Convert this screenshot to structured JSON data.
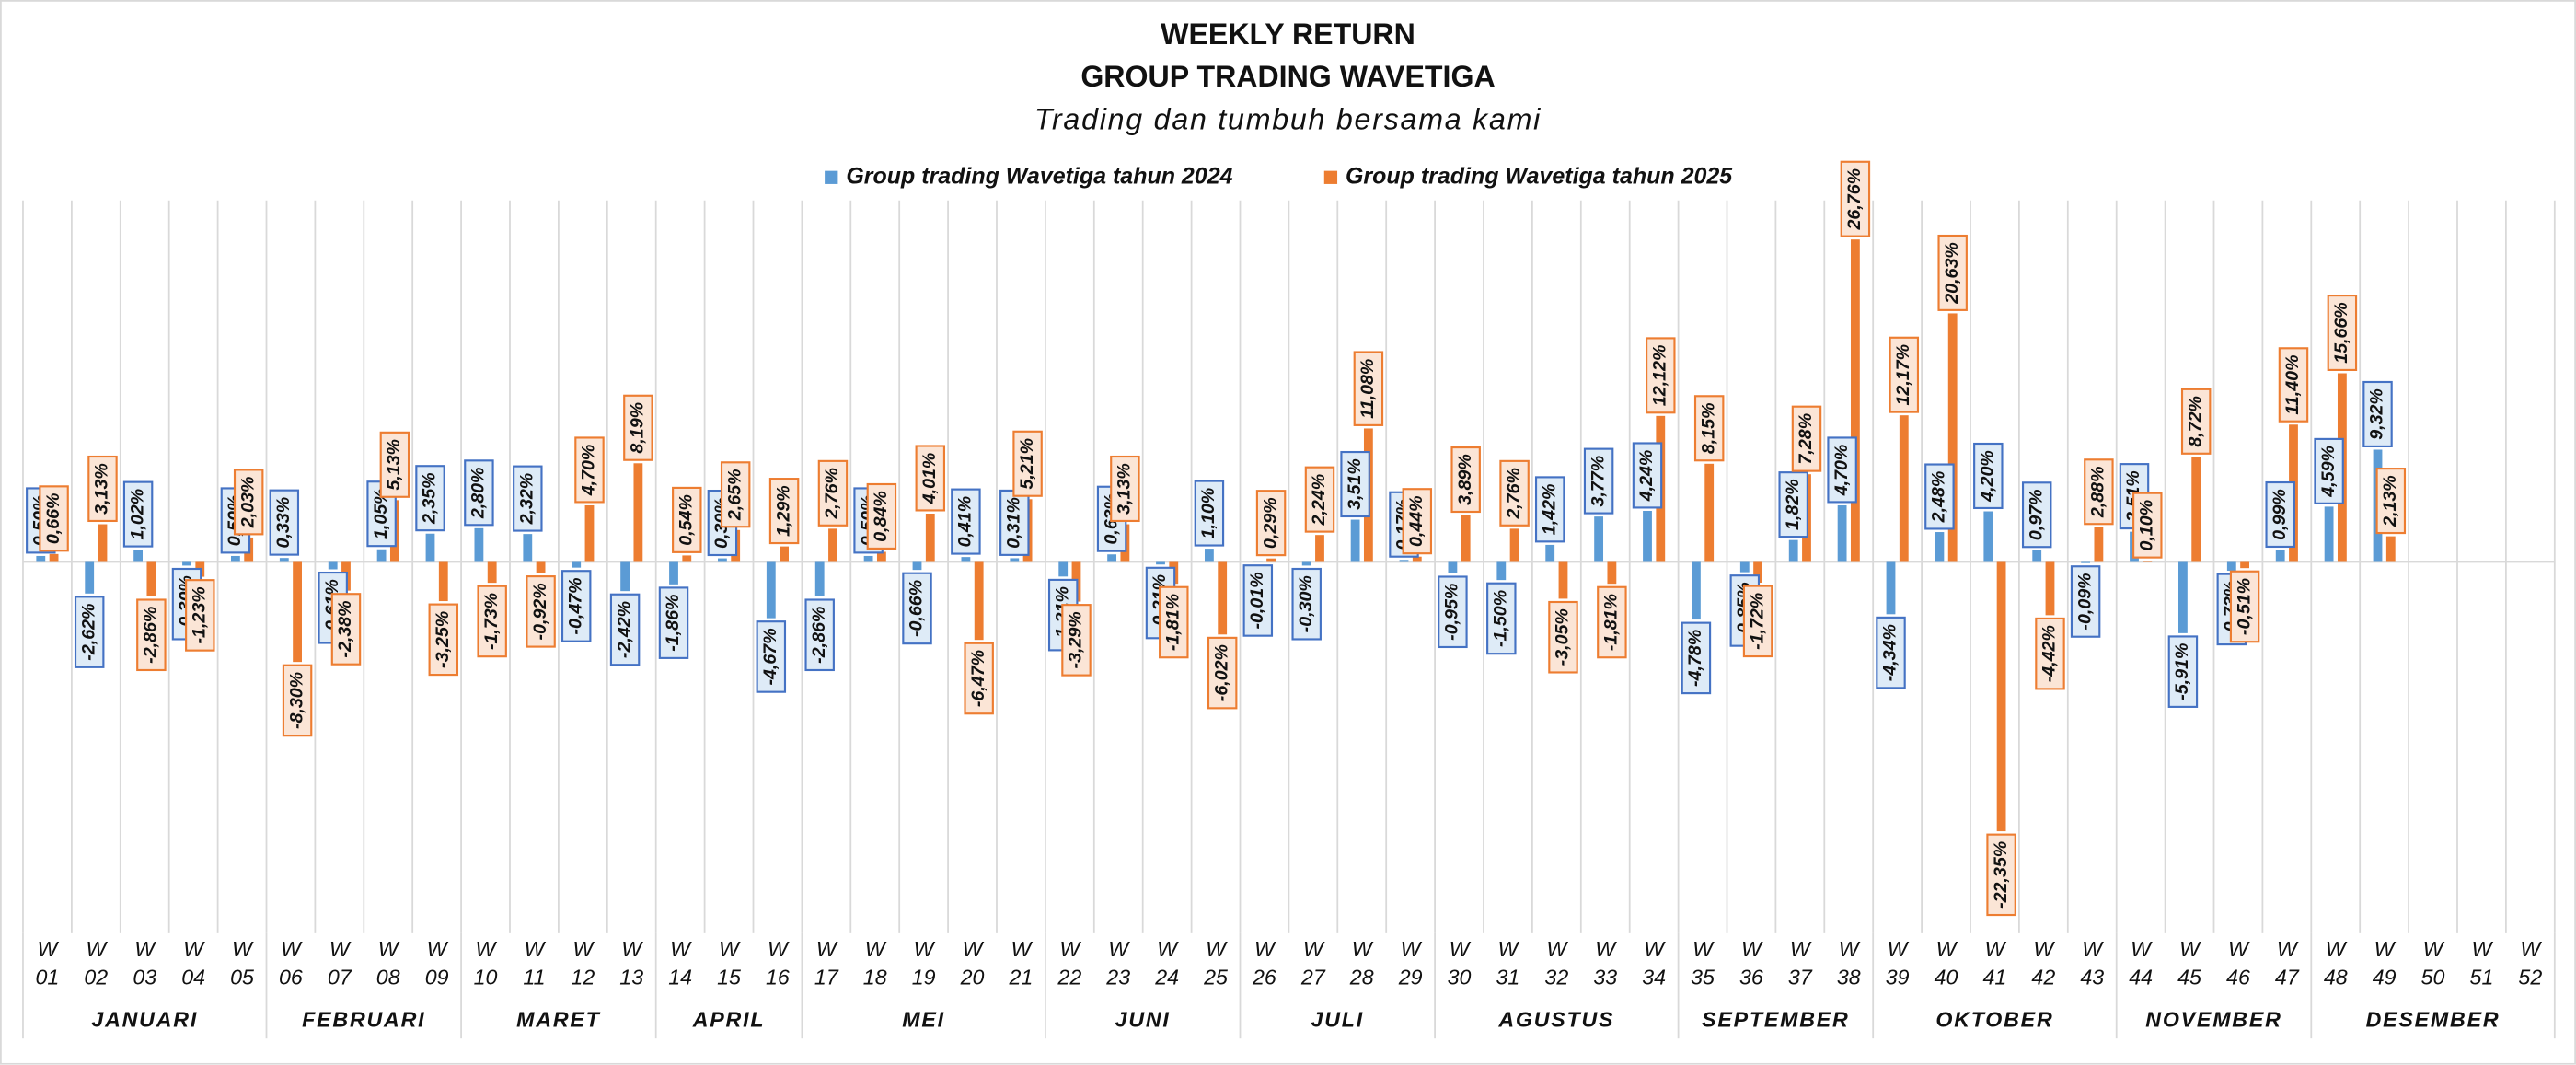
{
  "chart_data": {
    "type": "bar",
    "title": "WEEKLY RETURN",
    "title_line2": "GROUP TRADING WAVETIGA",
    "subtitle": "Trading dan tumbuh bersama kami",
    "category_groups": [
      {
        "name": "JANUARI",
        "categories": [
          "W\n01",
          "W\n02",
          "W\n03",
          "W\n04",
          "W\n05"
        ]
      },
      {
        "name": "FEBRUARI",
        "categories": [
          "W\n06",
          "W\n07",
          "W\n08",
          "W\n09"
        ]
      },
      {
        "name": "MARET",
        "categories": [
          "W\n10",
          "W\n11",
          "W\n12",
          "W\n13"
        ]
      },
      {
        "name": "APRIL",
        "categories": [
          "W\n14",
          "W\n15",
          "W\n16"
        ]
      },
      {
        "name": "MEI",
        "categories": [
          "W\n17",
          "W\n18",
          "W\n19",
          "W\n20",
          "W\n21"
        ]
      },
      {
        "name": "JUNI",
        "categories": [
          "W\n22",
          "W\n23",
          "W\n24",
          "W\n25"
        ]
      },
      {
        "name": "JULI",
        "categories": [
          "W\n26",
          "W\n27",
          "W\n28",
          "W\n29"
        ]
      },
      {
        "name": "AGUSTUS",
        "categories": [
          "W\n30",
          "W\n31",
          "W\n32",
          "W\n33",
          "W\n34"
        ]
      },
      {
        "name": "SEPTEMBER",
        "categories": [
          "W\n35",
          "W\n36",
          "W\n37",
          "W\n38"
        ]
      },
      {
        "name": "OKTOBER",
        "categories": [
          "W\n39",
          "W\n40",
          "W\n41",
          "W\n42",
          "W\n43"
        ]
      },
      {
        "name": "NOVEMBER",
        "categories": [
          "W\n44",
          "W\n45",
          "W\n46",
          "W\n47"
        ]
      },
      {
        "name": "DESEMBER",
        "categories": [
          "W\n48",
          "W\n49",
          "W\n50",
          "W\n51",
          "W\n52"
        ]
      }
    ],
    "series": [
      {
        "name": "Group trading Wavetiga tahun 2024",
        "color": "#5B9BD5",
        "label_border": "#4472C4",
        "label_fill": "#DEEBF7",
        "values": [
          0.5,
          -2.62,
          1.02,
          -0.3,
          0.5,
          0.33,
          -0.61,
          1.05,
          2.35,
          2.8,
          2.32,
          -0.47,
          -2.42,
          -1.86,
          0.3,
          -4.67,
          -2.86,
          0.5,
          -0.66,
          0.41,
          0.31,
          -1.21,
          0.63,
          -0.21,
          1.1,
          -0.01,
          -0.3,
          3.51,
          0.17,
          -0.95,
          -1.5,
          1.42,
          3.77,
          4.24,
          -4.78,
          -0.85,
          1.82,
          4.7,
          -4.34,
          2.48,
          4.2,
          0.97,
          -0.09,
          2.51,
          -5.91,
          -0.73,
          0.99,
          4.59,
          9.32,
          null,
          null,
          null
        ],
        "value_labels": [
          "0,50%",
          "-2,62%",
          "1,02%",
          "-0,30%",
          "0,50%",
          "0,33%",
          "-0,61%",
          "1,05%",
          "2,35%",
          "2,80%",
          "2,32%",
          "-0,47%",
          "-2,42%",
          "-1,86%",
          "0,30%",
          "-4,67%",
          "-2,86%",
          "0,50%",
          "-0,66%",
          "0,41%",
          "0,31%",
          "-1,21%",
          "0,63%",
          "-0,21%",
          "1,10%",
          "-0,01%",
          "-0,30%",
          "3,51%",
          "0,17%",
          "-0,95%",
          "-1,50%",
          "1,42%",
          "3,77%",
          "4,24%",
          "-4,78%",
          "-0,85%",
          "1,82%",
          "4,70%",
          "-4,34%",
          "2,48%",
          "4,20%",
          "0,97%",
          "-0,09%",
          "2,51%",
          "-5,91%",
          "-0,73%",
          "0,99%",
          "4,59%",
          "9,32%",
          null,
          null,
          null
        ]
      },
      {
        "name": "Group trading Wavetiga tahun 2025",
        "color": "#ED7D31",
        "label_border": "#ED7D31",
        "label_fill": "#FBE5D6",
        "values": [
          0.66,
          3.13,
          -2.86,
          -1.23,
          2.03,
          -8.3,
          -2.38,
          5.13,
          -3.25,
          -1.73,
          -0.92,
          4.7,
          8.19,
          0.54,
          2.65,
          1.29,
          2.76,
          0.84,
          4.01,
          -6.47,
          5.21,
          -3.29,
          3.13,
          -1.81,
          -6.02,
          0.29,
          2.24,
          11.08,
          0.44,
          3.89,
          2.76,
          -3.05,
          -1.81,
          12.12,
          8.15,
          -1.72,
          7.28,
          26.76,
          12.17,
          20.63,
          -22.35,
          -4.42,
          2.88,
          0.1,
          8.72,
          -0.51,
          11.4,
          15.66,
          2.13,
          null,
          null,
          null
        ],
        "value_labels": [
          "0,66%",
          "3,13%",
          "-2,86%",
          "-1,23%",
          "2,03%",
          "-8,30%",
          "-2,38%",
          "5,13%",
          "-3,25%",
          "-1,73%",
          "-0,92%",
          "4,70%",
          "8,19%",
          "0,54%",
          "2,65%",
          "1,29%",
          "2,76%",
          "0,84%",
          "4,01%",
          "-6,47%",
          "5,21%",
          "-3,29%",
          "3,13%",
          "-1,81%",
          "-6,02%",
          "0,29%",
          "2,24%",
          "11,08%",
          "0,44%",
          "3,89%",
          "2,76%",
          "-3,05%",
          "-1,81%",
          "12,12%",
          "8,15%",
          "-1,72%",
          "7,28%",
          "26,76%",
          "12,17%",
          "20,63%",
          "-22,35%",
          "-4,42%",
          "2,88%",
          "0,10%",
          "8,72%",
          "-0,51%",
          "11,40%",
          "15,66%",
          "2,13%",
          null,
          null,
          null
        ]
      }
    ],
    "ylim": [
      -30,
      30
    ],
    "legend": "top"
  }
}
